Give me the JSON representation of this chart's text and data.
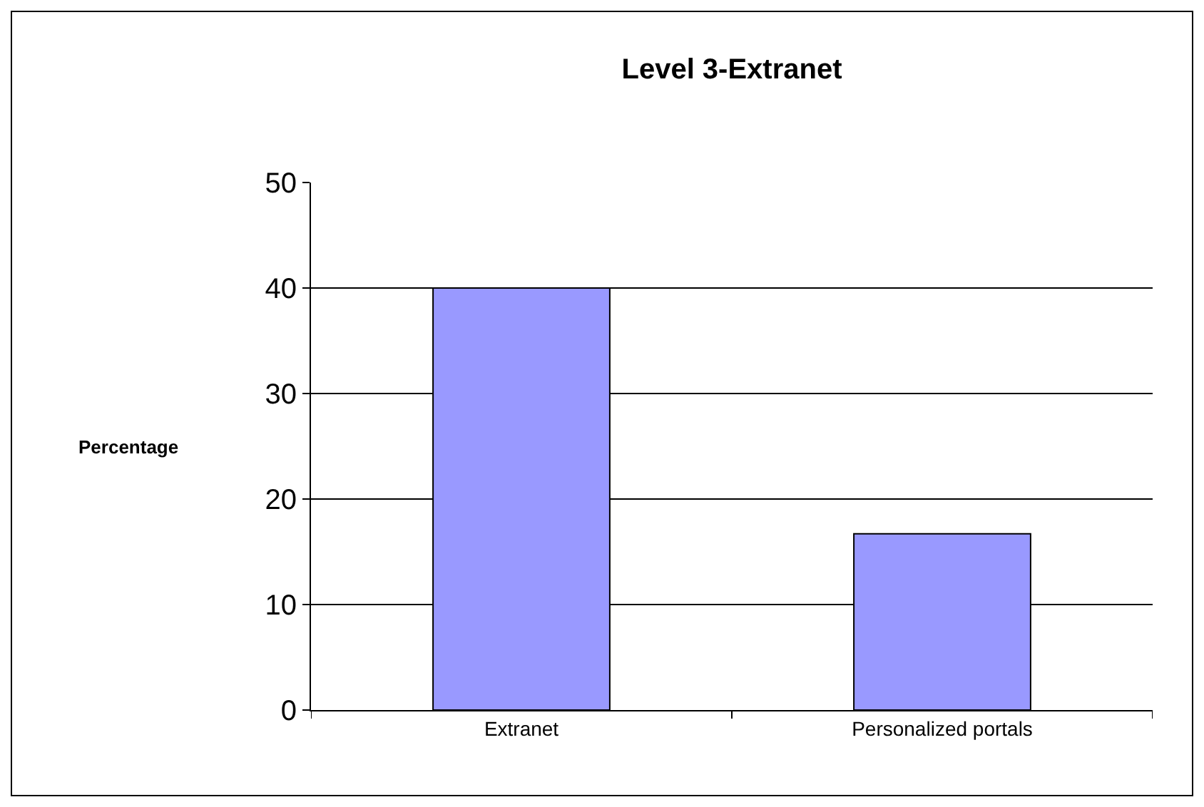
{
  "chart_data": {
    "type": "bar",
    "title": "Level 3-Extranet",
    "ylabel": "Percentage",
    "categories": [
      "Extranet",
      "Personalized portals"
    ],
    "values": [
      40,
      16.7
    ],
    "color": "#9999ff",
    "ylim": [
      0,
      50
    ],
    "yticks": [
      0,
      10,
      20,
      30,
      40,
      50
    ],
    "grid": "y",
    "legend": false
  }
}
